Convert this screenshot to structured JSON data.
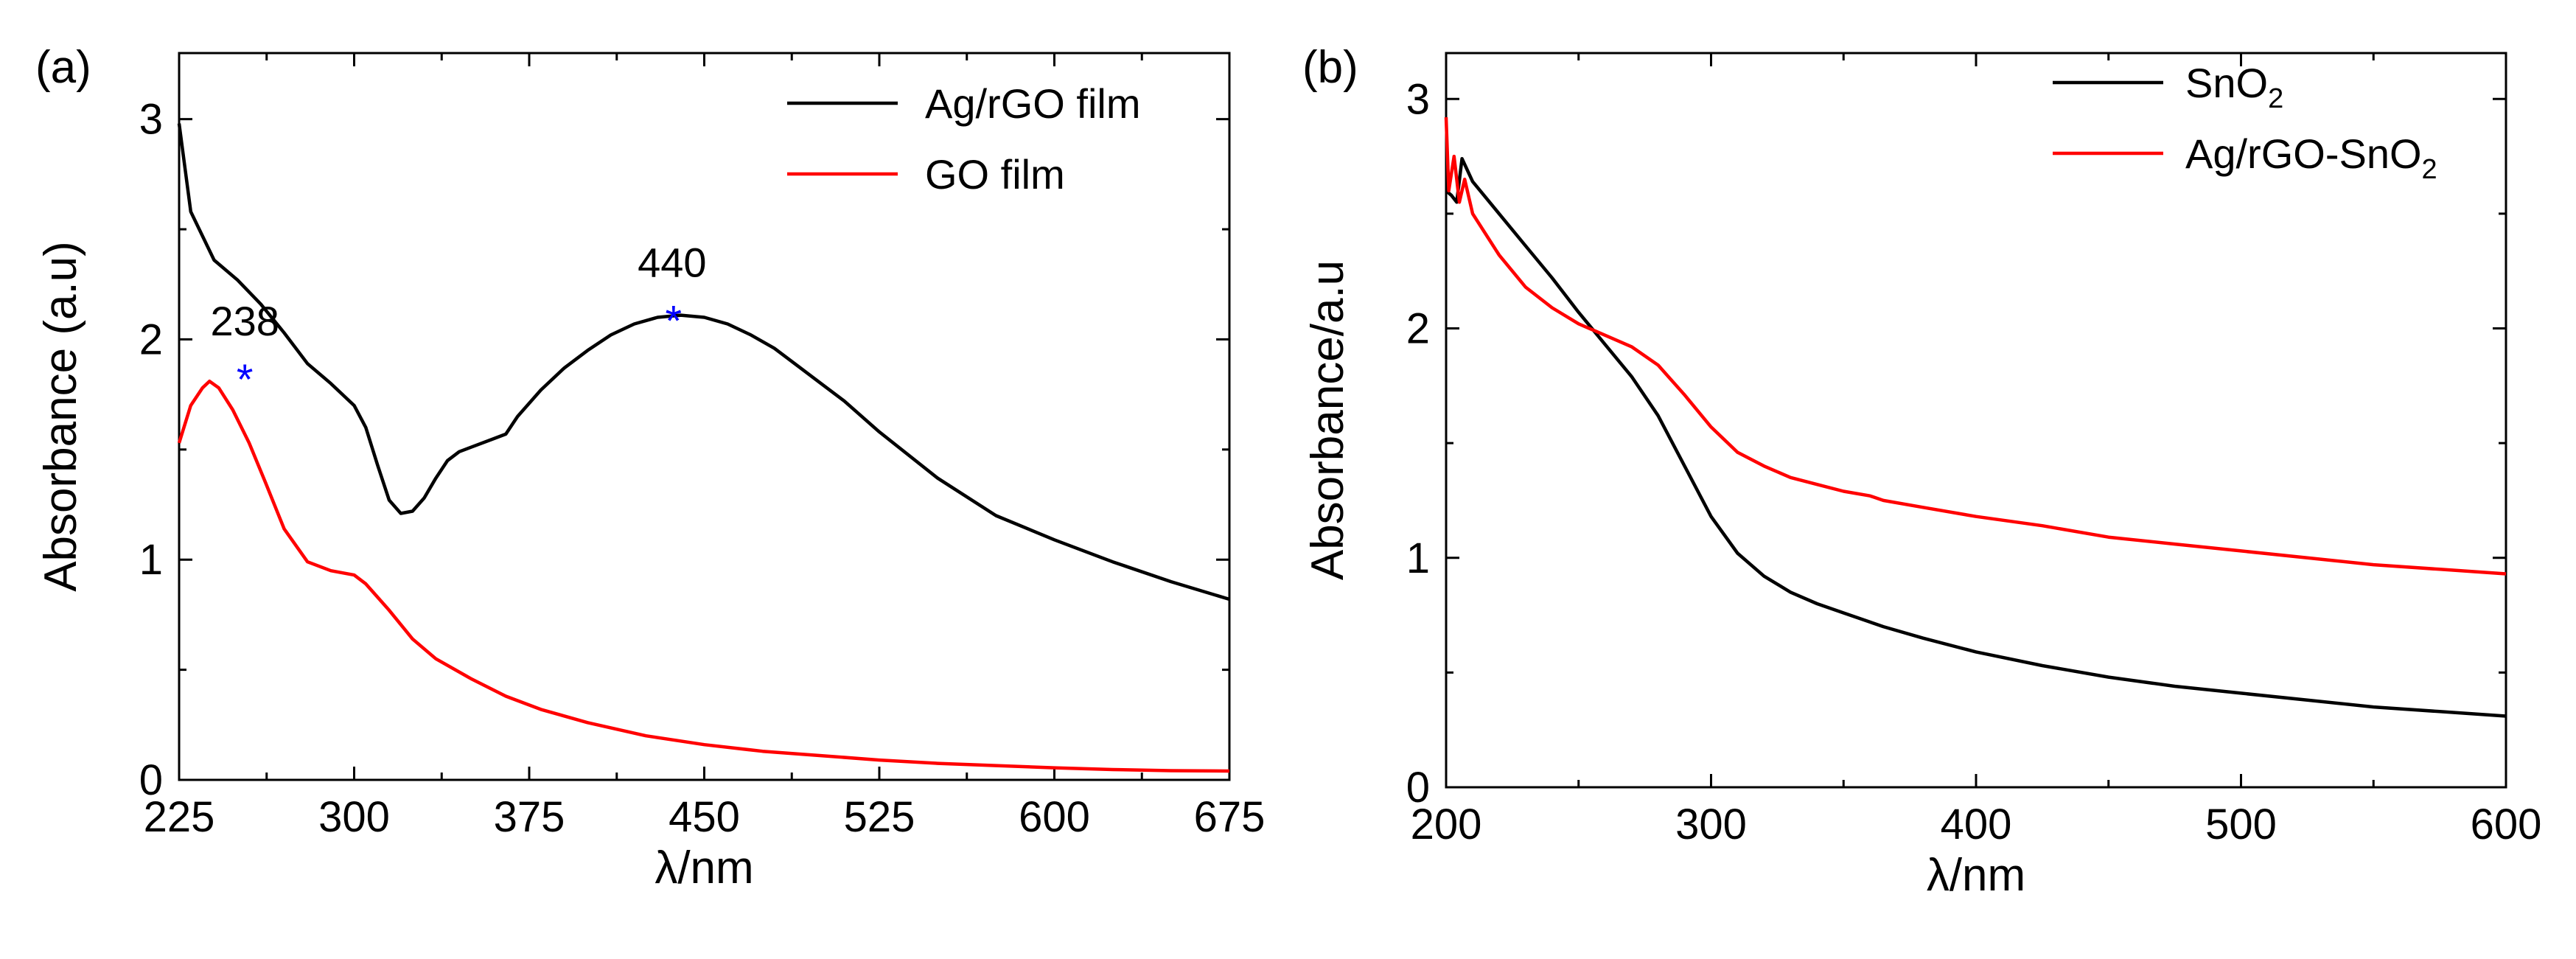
{
  "chart_data": [
    {
      "type": "line",
      "panel_label": "(a)",
      "xlabel": "λ/nm",
      "ylabel": "Absorbance (a.u)",
      "xlim": [
        225,
        675
      ],
      "ylim": [
        0,
        3.3
      ],
      "xticks": [
        225,
        300,
        375,
        450,
        525,
        600,
        675
      ],
      "yticks": [
        0,
        1,
        2,
        3
      ],
      "legend_position": "top-right",
      "series": [
        {
          "name": "Ag/rGO film",
          "color": "#000000",
          "x": [
            225,
            230,
            240,
            250,
            260,
            270,
            280,
            290,
            300,
            305,
            310,
            315,
            320,
            325,
            330,
            335,
            340,
            345,
            350,
            360,
            365,
            370,
            380,
            390,
            400,
            410,
            420,
            430,
            440,
            450,
            460,
            470,
            480,
            490,
            500,
            510,
            525,
            550,
            575,
            600,
            625,
            650,
            675
          ],
          "y": [
            2.98,
            2.58,
            2.36,
            2.27,
            2.16,
            2.03,
            1.89,
            1.8,
            1.7,
            1.6,
            1.43,
            1.27,
            1.21,
            1.22,
            1.28,
            1.37,
            1.45,
            1.49,
            1.51,
            1.55,
            1.57,
            1.65,
            1.77,
            1.87,
            1.95,
            2.02,
            2.07,
            2.1,
            2.11,
            2.1,
            2.07,
            2.02,
            1.96,
            1.88,
            1.8,
            1.72,
            1.58,
            1.37,
            1.2,
            1.09,
            0.99,
            0.9,
            0.82
          ]
        },
        {
          "name": "GO film",
          "color": "#ff0000",
          "x": [
            225,
            230,
            235,
            238,
            242,
            248,
            255,
            262,
            270,
            280,
            290,
            300,
            305,
            315,
            325,
            335,
            350,
            365,
            380,
            400,
            425,
            450,
            475,
            500,
            525,
            550,
            575,
            600,
            625,
            650,
            675
          ],
          "y": [
            1.53,
            1.7,
            1.78,
            1.81,
            1.78,
            1.68,
            1.53,
            1.35,
            1.14,
            0.99,
            0.95,
            0.93,
            0.89,
            0.77,
            0.64,
            0.55,
            0.46,
            0.38,
            0.32,
            0.26,
            0.2,
            0.16,
            0.13,
            0.11,
            0.09,
            0.075,
            0.065,
            0.055,
            0.047,
            0.042,
            0.04
          ]
        }
      ],
      "annotations": [
        {
          "text": "238",
          "x": 238,
          "y": 1.81,
          "marker": "*"
        },
        {
          "text": "440",
          "x": 440,
          "y": 2.11,
          "marker": "*"
        }
      ]
    },
    {
      "type": "line",
      "panel_label": "(b)",
      "xlabel": "λ/nm",
      "ylabel": "Absorbance/a.u",
      "xlim": [
        200,
        600
      ],
      "ylim": [
        0,
        3.2
      ],
      "xticks": [
        200,
        300,
        400,
        500,
        600
      ],
      "yticks": [
        0,
        1,
        2,
        3
      ],
      "legend_position": "top-right",
      "series": [
        {
          "name": "SnO2",
          "label_main": "SnO",
          "label_sub": "2",
          "label_tail": "",
          "color": "#000000",
          "x": [
            200,
            202,
            204,
            206,
            210,
            220,
            230,
            240,
            250,
            260,
            270,
            280,
            290,
            300,
            310,
            320,
            330,
            340,
            350,
            360,
            365,
            380,
            400,
            425,
            450,
            475,
            500,
            525,
            550,
            575,
            600
          ],
          "y": [
            2.6,
            2.58,
            2.55,
            2.74,
            2.64,
            2.5,
            2.36,
            2.22,
            2.07,
            1.93,
            1.79,
            1.62,
            1.4,
            1.18,
            1.02,
            0.92,
            0.85,
            0.8,
            0.76,
            0.72,
            0.7,
            0.65,
            0.59,
            0.53,
            0.48,
            0.44,
            0.41,
            0.38,
            0.35,
            0.33,
            0.31
          ]
        },
        {
          "name": "Ag/rGO-SnO2",
          "label_main": "Ag/rGO-SnO",
          "label_sub": "2",
          "label_tail": "",
          "color": "#ff0000",
          "x": [
            200,
            201,
            203,
            205,
            207,
            210,
            220,
            230,
            240,
            250,
            260,
            270,
            280,
            290,
            300,
            310,
            320,
            330,
            340,
            350,
            360,
            365,
            380,
            400,
            425,
            450,
            475,
            500,
            525,
            550,
            575,
            600
          ],
          "y": [
            2.92,
            2.6,
            2.75,
            2.55,
            2.65,
            2.5,
            2.32,
            2.18,
            2.09,
            2.02,
            1.97,
            1.92,
            1.84,
            1.71,
            1.57,
            1.46,
            1.4,
            1.35,
            1.32,
            1.29,
            1.27,
            1.25,
            1.22,
            1.18,
            1.14,
            1.09,
            1.06,
            1.03,
            1.0,
            0.97,
            0.95,
            0.93
          ]
        }
      ]
    }
  ]
}
